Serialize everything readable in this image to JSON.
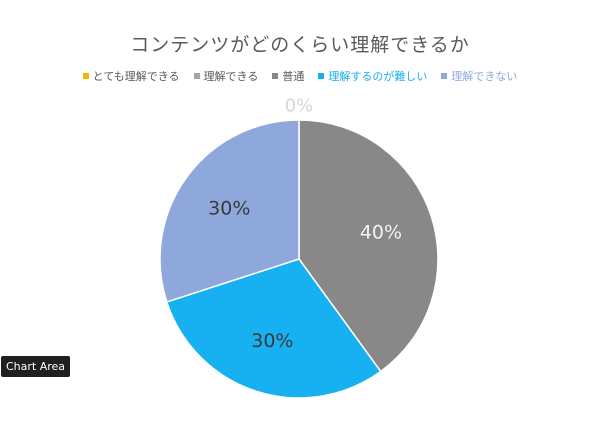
{
  "chart_data": {
    "type": "pie",
    "title": "コンテンツがどのくらい理解できるか",
    "legend_position": "top",
    "categories": [
      "とても理解できる",
      "理解できる",
      "普通",
      "理解するのが難しい",
      "理解できない"
    ],
    "values": [
      0,
      0,
      40,
      30,
      30
    ],
    "labels": [
      "0%",
      "",
      "40%",
      "30%",
      "30%"
    ],
    "colors": [
      "#F2B800",
      "#A5A5A5",
      "#888888",
      "#17B0F0",
      "#8EA8DC"
    ]
  },
  "tooltip": {
    "text": "Chart Area"
  }
}
